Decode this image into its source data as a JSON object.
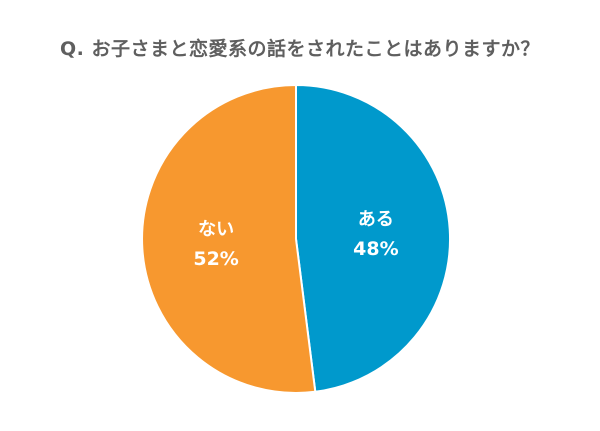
{
  "chart_data": {
    "type": "pie",
    "title": "Q. お子さまと恋愛系の話をされたことはありますか？",
    "slices": [
      {
        "label": "ある",
        "value": 48,
        "value_text": "48%",
        "color": "#0099cc"
      },
      {
        "label": "ない",
        "value": 52,
        "value_text": "52%",
        "color": "#f7982f"
      }
    ],
    "start": "top",
    "direction": "clockwise",
    "legend": "none"
  }
}
